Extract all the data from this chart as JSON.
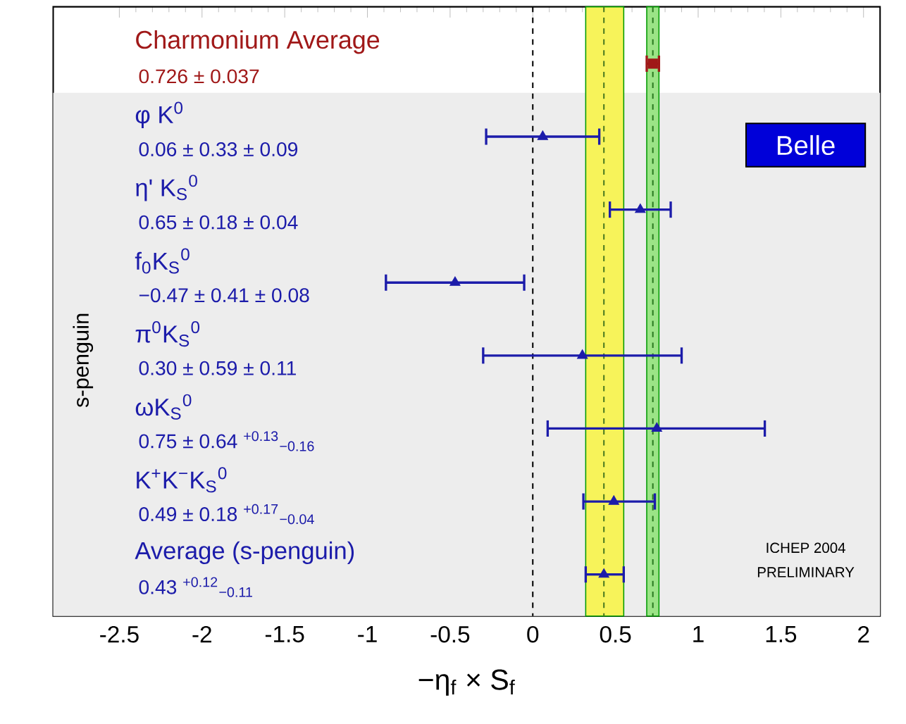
{
  "chart_data": {
    "type": "scatter",
    "orientation": "horizontal",
    "xlabel": "−η$_{f}$ × S$_{f}$",
    "ylabel": "s-penguin",
    "categories": [
      "Charmonium Average",
      "φ K$^{0}$",
      "η' K$_{S}$$^{0}$",
      "f$_{0}$K$_{S}$$^{0}$",
      "π$^{0}$K$_{S}$$^{0}$",
      "ωK$_{S}$$^{0}$",
      "K$^{+}$K$^{−}$K$_{S}$$^{0}$",
      "Average (s-penguin)"
    ],
    "series": [
      {
        "color": "#a01818",
        "marker": "square",
        "values": [
          0.726,
          null,
          null,
          null,
          null,
          null,
          null,
          null
        ],
        "errors": [
          0.037,
          null,
          null,
          null,
          null,
          null,
          null,
          null
        ]
      },
      {
        "color": "#1c1caa",
        "marker": "triangle",
        "values": [
          null,
          0.06,
          0.65,
          -0.47,
          0.3,
          0.75,
          0.49,
          0.43
        ],
        "errors": [
          null,
          0.342,
          0.184,
          0.418,
          0.6,
          [
            0.09,
            1.403
          ],
          [
            0.306,
            0.738
          ],
          [
            0.32,
            0.55
          ]
        ]
      }
    ],
    "xlim": [
      -2.9,
      2.1
    ],
    "xticks": [
      -2.5,
      -2,
      -1.5,
      -1,
      -0.5,
      0,
      0.5,
      1,
      1.5,
      2
    ],
    "tick_labels": "x",
    "bands": [
      {
        "axis": "x",
        "from": 0.32,
        "to": 0.55,
        "color": "#f7f35a"
      },
      {
        "axis": "x",
        "from": 0.689,
        "to": 0.763,
        "color": "#9be486"
      }
    ],
    "ref_lines": [
      {
        "axis": "x",
        "value": 0,
        "color": "#000000",
        "line_style": "dashed"
      },
      {
        "axis": "x",
        "value": 0.43,
        "color": "#4a7a20",
        "line_style": "dashed"
      },
      {
        "axis": "x",
        "value": 0.726,
        "color": "#2a7a20",
        "line_style": "dashed"
      }
    ],
    "annotations": [
      "Belle",
      "ICHEP 2004",
      "PRELIMINARY",
      "0.726 ± 0.037",
      "0.06 ± 0.33 ± 0.09",
      "0.65 ± 0.18 ± 0.04",
      "−0.47 ± 0.41 ± 0.08",
      "0.30 ± 0.59 ± 0.11",
      "0.75 ± 0.64 $^{+0.13}$$_{−0.16}$",
      "0.49 ± 0.18 $^{+0.17}$$_{−0.04}$",
      "0.43 $^{+0.12}$$_{−0.11}$"
    ]
  }
}
